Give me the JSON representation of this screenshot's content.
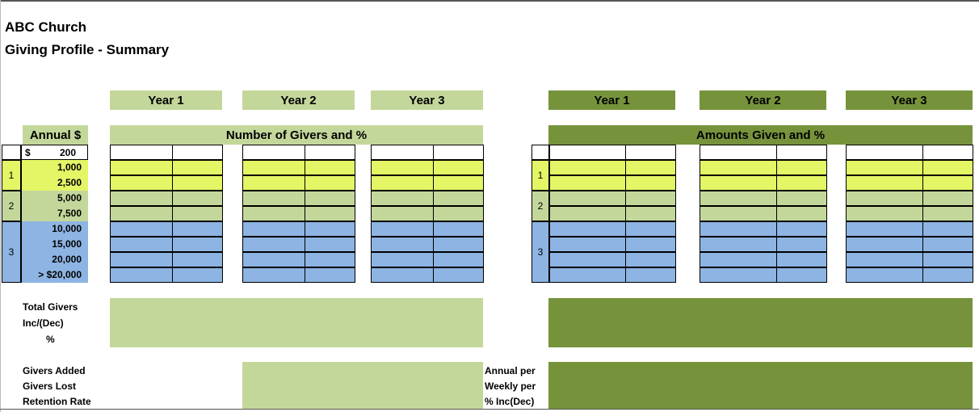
{
  "header": {
    "org": "ABC Church",
    "subtitle": "Giving Profile - Summary"
  },
  "years": [
    "Year 1",
    "Year 2",
    "Year 3"
  ],
  "sections": {
    "givers": "Number of Givers and %",
    "amounts": "Amounts Given and %"
  },
  "annual_header": "Annual $",
  "brackets": {
    "first": {
      "currency": "$",
      "value": "200"
    },
    "rest": [
      "1,000",
      "2,500",
      "5,000",
      "7,500",
      "10,000",
      "15,000",
      "20,000",
      "> $20,000"
    ]
  },
  "groups": [
    "1",
    "2",
    "3"
  ],
  "totals": {
    "total_givers": "Total Givers",
    "inc_dec": "Inc/(Dec)",
    "pct": "%"
  },
  "retention": {
    "added": "Givers Added",
    "lost": "Givers Lost",
    "rate": "Retention Rate"
  },
  "per": {
    "annual": "Annual per",
    "weekly": "Weekly per",
    "pct_inc": "% Inc(Dec)"
  },
  "colors": {
    "light_green": "#c4d79b",
    "dark_green": "#76933c",
    "lime": "#e4f566",
    "blue": "#8db4e2"
  }
}
